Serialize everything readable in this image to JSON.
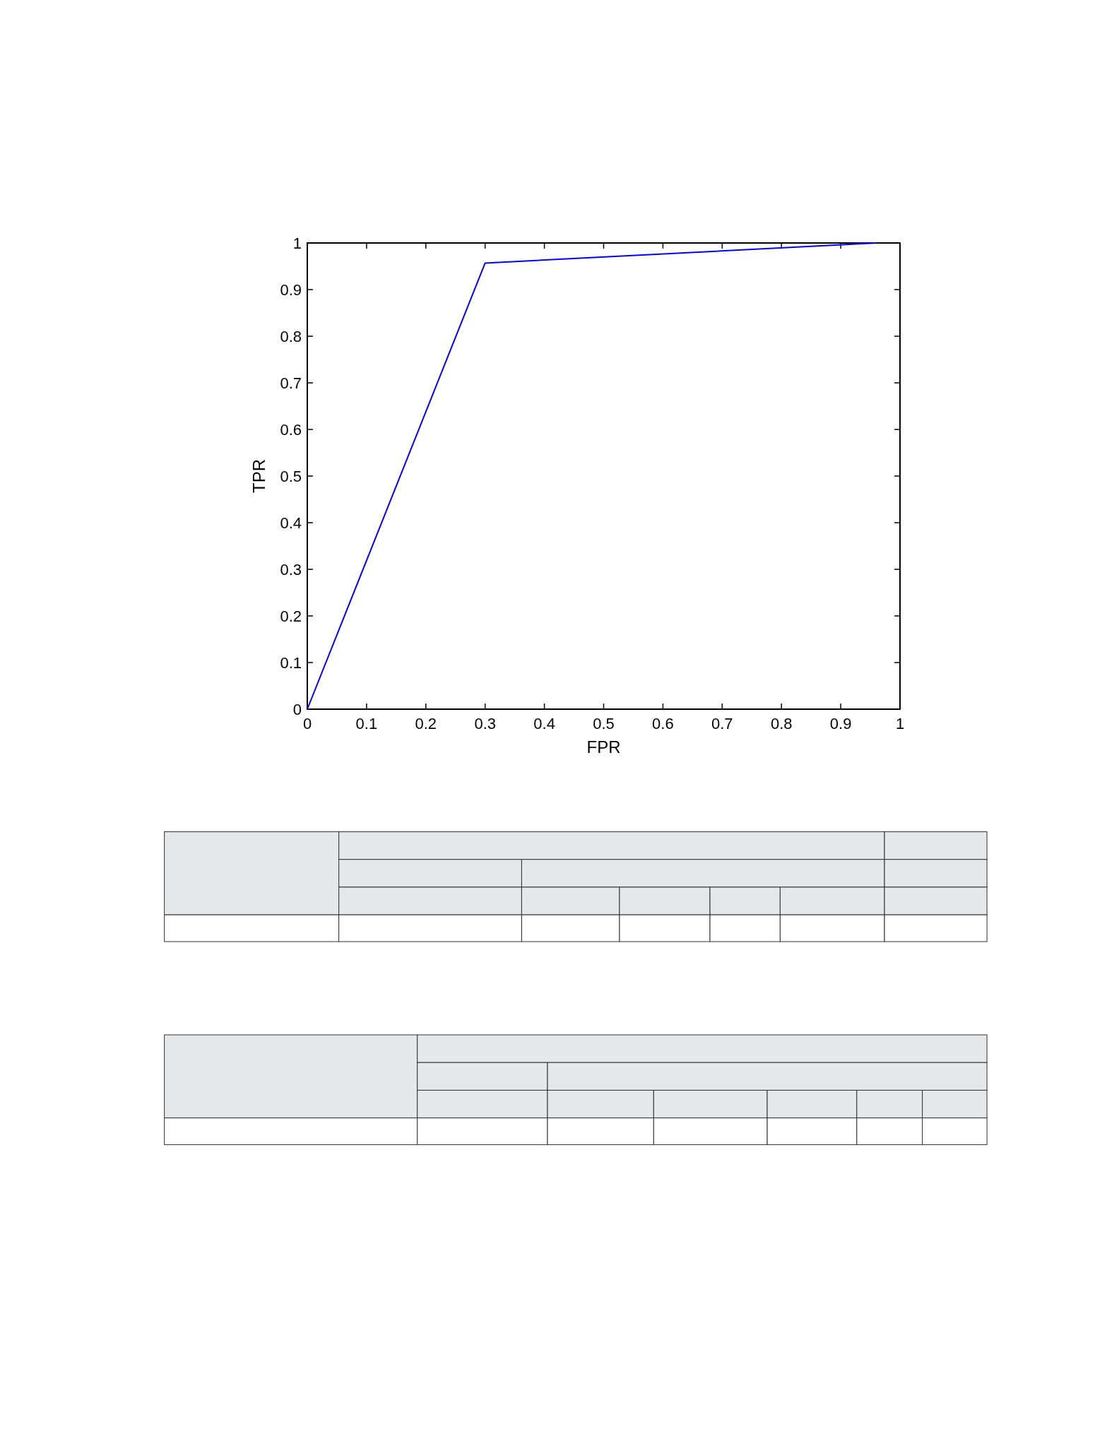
{
  "chart_data": {
    "type": "line",
    "xlabel": "FPR",
    "ylabel": "TPR",
    "x": [
      0,
      0.3,
      0.96
    ],
    "series": [
      {
        "color": "#0000ff",
        "values": [
          0,
          0.957,
          1
        ]
      }
    ],
    "xlim": [
      0,
      1
    ],
    "ylim": [
      0,
      1
    ],
    "xticks": [
      0,
      0.1,
      0.2,
      0.3,
      0.4,
      0.5,
      0.6,
      0.7,
      0.8,
      0.9,
      1
    ],
    "yticks": [
      0,
      0.1,
      0.2,
      0.3,
      0.4,
      0.5,
      0.6,
      0.7,
      0.8,
      0.9,
      1
    ],
    "marker": "none",
    "line_style": "solid"
  }
}
